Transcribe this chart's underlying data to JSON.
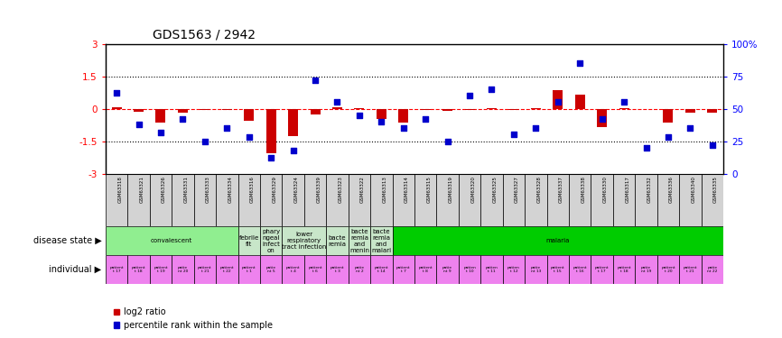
{
  "title": "GDS1563 / 2942",
  "samples": [
    "GSM63318",
    "GSM63321",
    "GSM63326",
    "GSM63331",
    "GSM63333",
    "GSM63334",
    "GSM63316",
    "GSM63329",
    "GSM63324",
    "GSM63339",
    "GSM63323",
    "GSM63322",
    "GSM63313",
    "GSM63314",
    "GSM63315",
    "GSM63319",
    "GSM63320",
    "GSM63325",
    "GSM63327",
    "GSM63328",
    "GSM63337",
    "GSM63338",
    "GSM63330",
    "GSM63317",
    "GSM63332",
    "GSM63336",
    "GSM63340",
    "GSM63335"
  ],
  "log2_ratio": [
    0.08,
    -0.12,
    -0.65,
    -0.18,
    -0.04,
    -0.04,
    -0.55,
    -2.05,
    -1.25,
    -0.28,
    0.08,
    0.04,
    -0.48,
    -0.65,
    -0.04,
    -0.08,
    -0.04,
    0.04,
    -0.04,
    0.04,
    0.85,
    0.65,
    -0.85,
    0.04,
    0.0,
    -0.65,
    -0.18,
    -0.18
  ],
  "percentile": [
    62,
    38,
    32,
    42,
    25,
    35,
    28,
    12,
    18,
    72,
    55,
    45,
    40,
    35,
    42,
    25,
    60,
    65,
    30,
    35,
    55,
    85,
    42,
    55,
    20,
    28,
    35,
    22
  ],
  "disease_groups": [
    {
      "label": "convalescent",
      "start": 0,
      "end": 5,
      "color": "#90EE90"
    },
    {
      "label": "febrile\nfit",
      "start": 6,
      "end": 6,
      "color": "#c8e6c9"
    },
    {
      "label": "phary\nngeal\ninfect\non",
      "start": 7,
      "end": 7,
      "color": "#c8e6c9"
    },
    {
      "label": "lower\nrespiratory\ntract infection",
      "start": 8,
      "end": 9,
      "color": "#c8e6c9"
    },
    {
      "label": "bacte\nremia",
      "start": 10,
      "end": 10,
      "color": "#c8e6c9"
    },
    {
      "label": "bacte\nremia\nand\nmenin",
      "start": 11,
      "end": 11,
      "color": "#c8e6c9"
    },
    {
      "label": "bacte\nremia\nand\nmalari",
      "start": 12,
      "end": 12,
      "color": "#c8e6c9"
    },
    {
      "label": "malaria",
      "start": 13,
      "end": 27,
      "color": "#00cc00"
    }
  ],
  "individual_labels": [
    "patient\nt 17",
    "patient\nt 18",
    "patient\nt 19",
    "patie\nnt 20",
    "patient\nt 21",
    "patient\nt 22",
    "patient\nt 1",
    "patie\nnt 5",
    "patient\nt 4",
    "patient\nt 6",
    "patient\nt 3",
    "patie\nnt 2",
    "patient\nt 14",
    "patient\nt 7",
    "patient\nt 8",
    "patie\nnt 9",
    "patien\nt 10",
    "patien\nt 11",
    "patien\nt 12",
    "patie\nnt 13",
    "patient\nt 15",
    "patient\nt 16",
    "patient\nt 17",
    "patient\nt 18",
    "patie\nnt 19",
    "patient\nt 20",
    "patient\nt 21",
    "patie\nnt 22"
  ],
  "ylim": [
    -3,
    3
  ],
  "yticks_left": [
    -3,
    -1.5,
    0,
    1.5,
    3
  ],
  "yticks_right": [
    0,
    25,
    50,
    75,
    100
  ],
  "bar_color": "#cc0000",
  "square_color": "#0000cc",
  "individual_color": "#ee82ee",
  "sample_bg_color": "#d3d3d3",
  "legend_items": [
    "log2 ratio",
    "percentile rank within the sample"
  ]
}
